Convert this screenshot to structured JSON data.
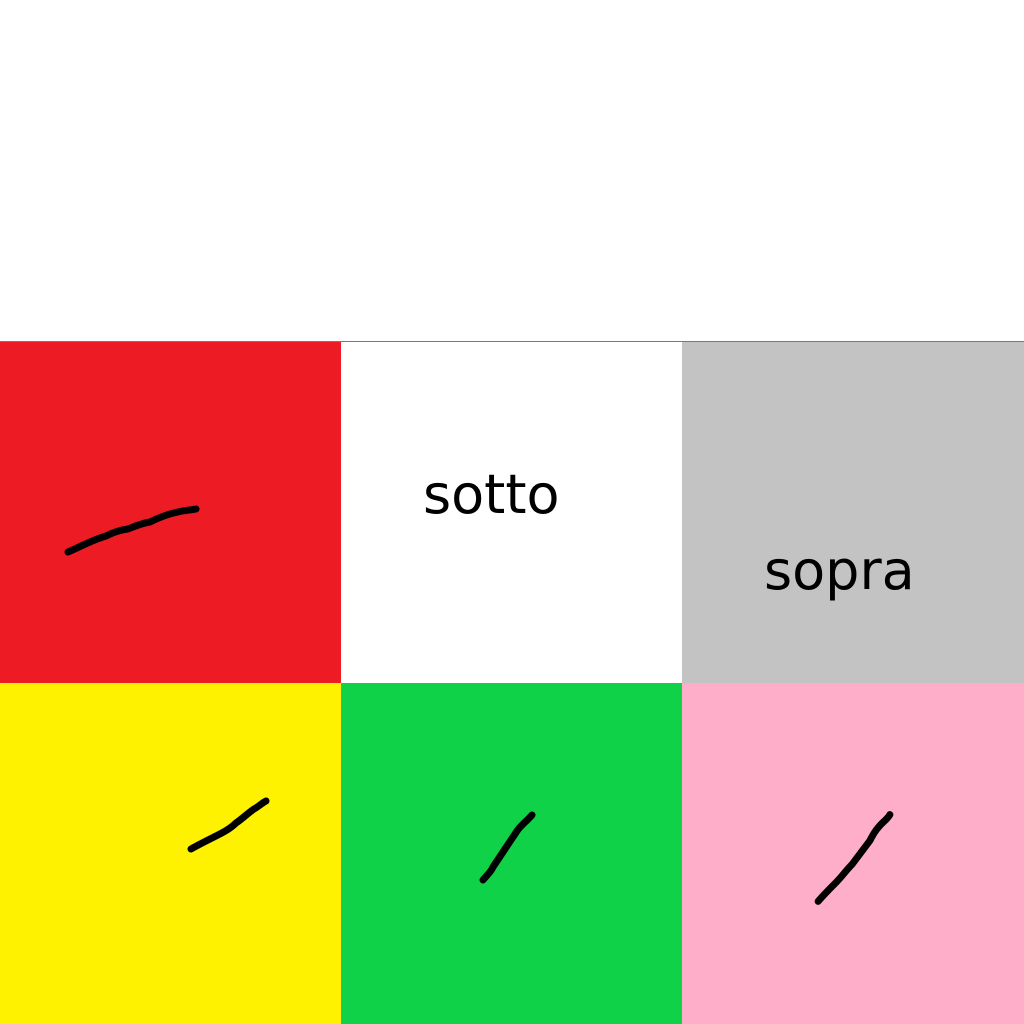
{
  "grid": {
    "cells": [
      {
        "name": "cell-red",
        "color": "#ED1C24",
        "label": ""
      },
      {
        "name": "cell-white",
        "color": "#FFFFFF",
        "label": "sotto"
      },
      {
        "name": "cell-gray",
        "color": "#C3C3C3",
        "label": "sopra"
      },
      {
        "name": "cell-yellow",
        "color": "#FFF200",
        "label": ""
      },
      {
        "name": "cell-green",
        "color": "#10D248",
        "label": ""
      },
      {
        "name": "cell-pink",
        "color": "#FFAEC9",
        "label": ""
      }
    ]
  }
}
